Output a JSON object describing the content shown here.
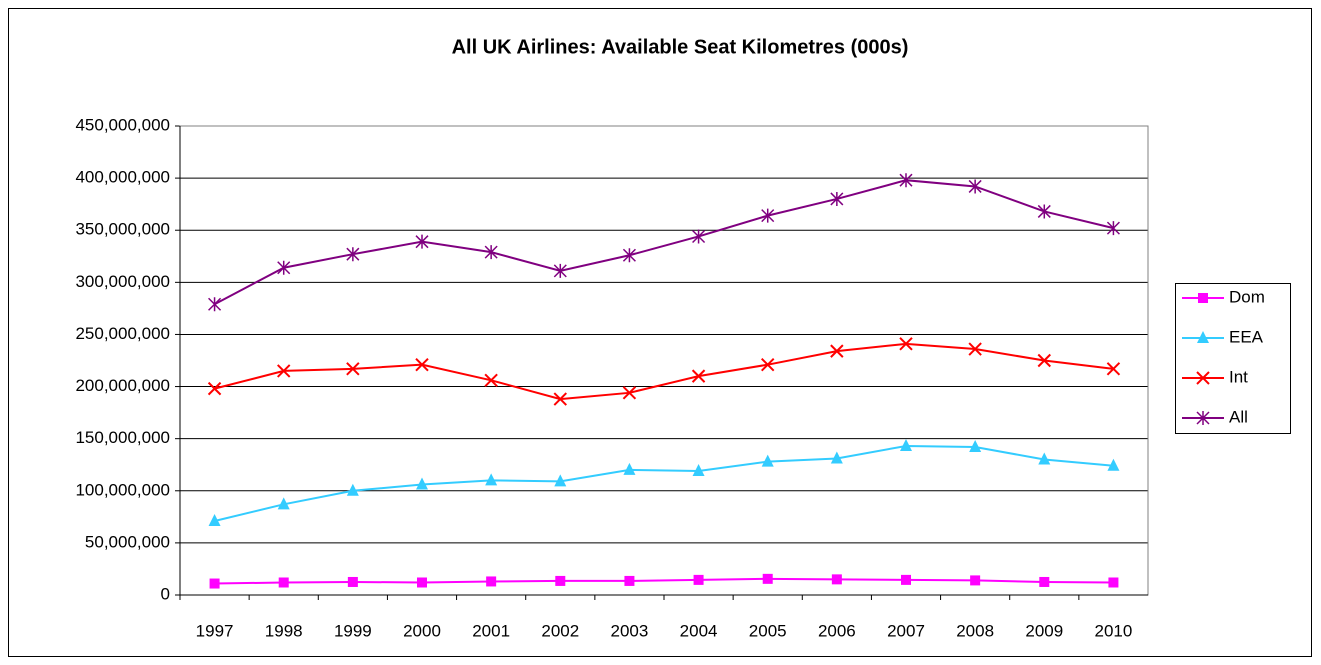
{
  "chart_data": {
    "type": "line",
    "title": "All UK Airlines: Available Seat Kilometres (000s)",
    "categories": [
      "1997",
      "1998",
      "1999",
      "2000",
      "2001",
      "2002",
      "2003",
      "2004",
      "2005",
      "2006",
      "2007",
      "2008",
      "2009",
      "2010"
    ],
    "series": [
      {
        "name": "Dom",
        "color": "#ff00ff",
        "marker": "square",
        "values": [
          11000000,
          12000000,
          12500000,
          12000000,
          13000000,
          13500000,
          13500000,
          14500000,
          15500000,
          15000000,
          14500000,
          14000000,
          12500000,
          12000000
        ]
      },
      {
        "name": "EEA",
        "color": "#33ccff",
        "marker": "triangle",
        "values": [
          71000000,
          87000000,
          100000000,
          106000000,
          110000000,
          109000000,
          120000000,
          119000000,
          128000000,
          131000000,
          143000000,
          142000000,
          130000000,
          124000000
        ]
      },
      {
        "name": "Int",
        "color": "#ff0000",
        "marker": "x",
        "values": [
          198000000,
          215000000,
          217000000,
          221000000,
          206000000,
          188000000,
          194000000,
          210000000,
          221000000,
          234000000,
          241000000,
          236000000,
          225000000,
          217000000
        ]
      },
      {
        "name": "All",
        "color": "#800080",
        "marker": "star",
        "values": [
          279000000,
          314000000,
          327000000,
          339000000,
          329000000,
          311000000,
          326000000,
          344000000,
          364000000,
          380000000,
          398000000,
          392000000,
          368000000,
          352000000
        ]
      }
    ],
    "ylim": [
      0,
      450000000
    ],
    "yticks": [
      0,
      {
        "value": 50000000,
        "label": "50,000,000"
      },
      {
        "value": 100000000,
        "label": "100,000,000"
      },
      {
        "value": 150000000,
        "label": "150,000,000"
      },
      {
        "value": 200000000,
        "label": "200,000,000"
      },
      {
        "value": 250000000,
        "label": "250,000,000"
      },
      {
        "value": 300000000,
        "label": "300,000,000"
      },
      {
        "value": 350000000,
        "label": "350,000,000"
      },
      {
        "value": 400000000,
        "label": "400,000,000"
      },
      {
        "value": 450000000,
        "label": "450,000,000"
      }
    ],
    "grid": true,
    "legend": "right"
  }
}
